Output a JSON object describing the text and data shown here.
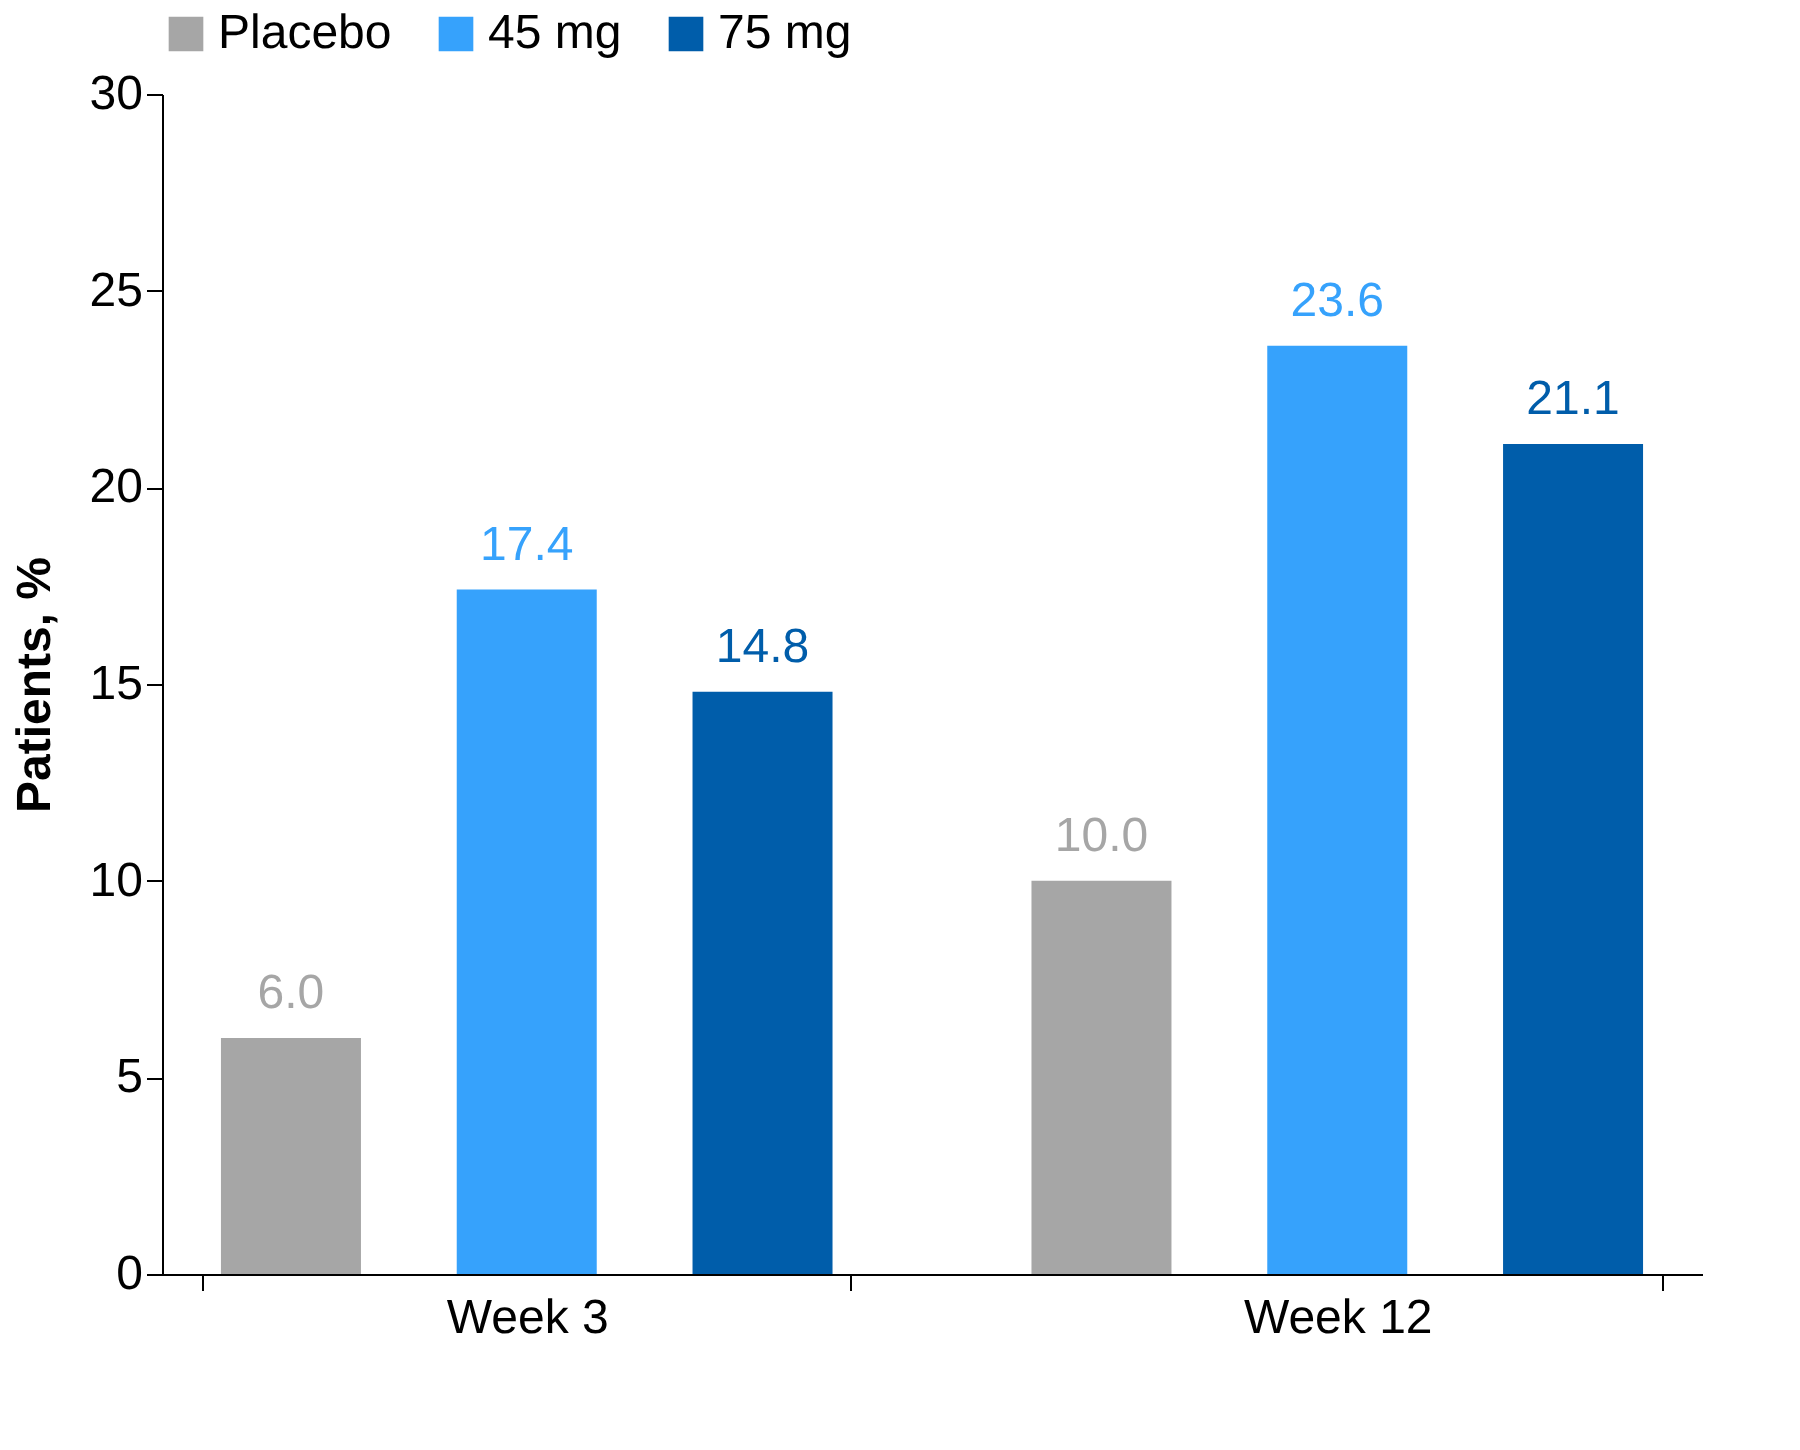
{
  "chart_data": {
    "type": "bar",
    "ylabel": "Patients, %",
    "categories": [
      "Week 3",
      "Week 12"
    ],
    "series": [
      {
        "name": "Placebo",
        "color": "#a6a6a6",
        "values": [
          6.0,
          10.0
        ],
        "value_labels": [
          "6.0",
          "10.0"
        ]
      },
      {
        "name": "45 mg",
        "color": "#36a2fc",
        "values": [
          17.4,
          23.6
        ],
        "value_labels": [
          "17.4",
          "23.6"
        ]
      },
      {
        "name": "75 mg",
        "color": "#005daa",
        "values": [
          14.8,
          21.1
        ],
        "value_labels": [
          "14.8",
          "21.1"
        ]
      }
    ],
    "ylim": [
      0,
      30
    ],
    "yticks": [
      0,
      5,
      10,
      15,
      20,
      25,
      30
    ],
    "grid": false,
    "legend": "top"
  }
}
